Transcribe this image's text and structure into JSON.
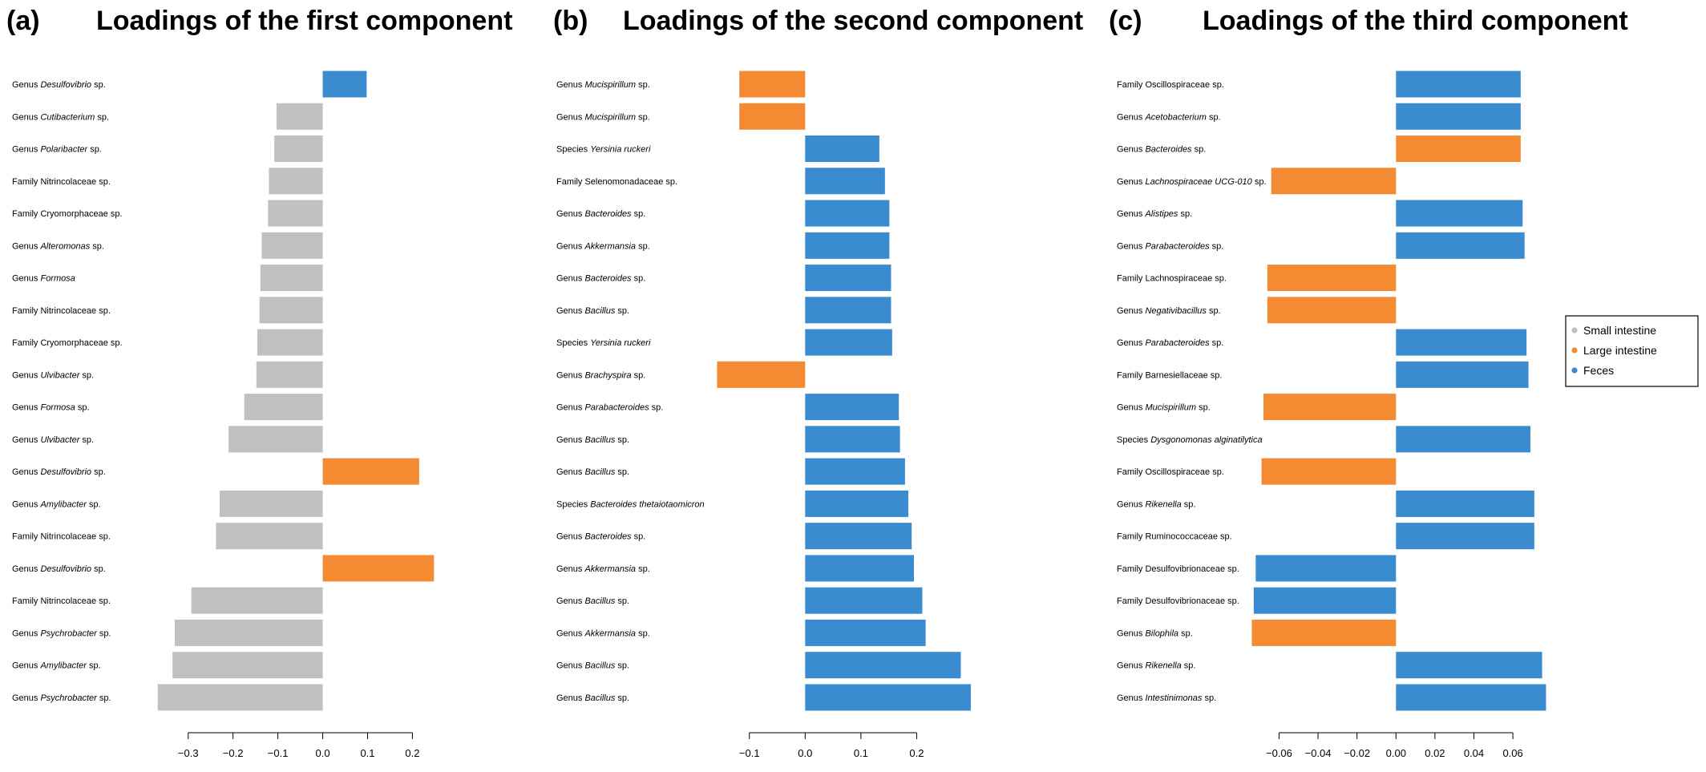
{
  "colors": {
    "small": "#c0c0c0",
    "large": "#f48b32",
    "feces": "#3a8bd0"
  },
  "legend": {
    "items": [
      {
        "key": "small",
        "label": "Small intestine"
      },
      {
        "key": "large",
        "label": "Large intestine"
      },
      {
        "key": "feces",
        "label": "Feces"
      }
    ]
  },
  "chart_data": [
    {
      "type": "bar",
      "orientation": "horizontal",
      "panel": "(a)",
      "title": "Loadings of the first component",
      "xlim": [
        -0.38,
        0.26
      ],
      "xticks": [
        -0.3,
        -0.2,
        -0.1,
        0.0,
        0.1,
        0.2
      ],
      "xtick_labels": [
        "−0.3",
        "−0.2",
        "−0.1",
        "0.0",
        "0.1",
        "0.2"
      ],
      "axis_range": [
        -0.3,
        0.2
      ],
      "bars": [
        {
          "rank": "Genus",
          "name": "Desulfovibrio",
          "italic": true,
          "suffix": " sp.",
          "value": 0.098,
          "group": "feces"
        },
        {
          "rank": "Genus",
          "name": "Cutibacterium",
          "italic": true,
          "suffix": " sp.",
          "value": -0.103,
          "group": "small"
        },
        {
          "rank": "Genus",
          "name": "Polaribacter",
          "italic": true,
          "suffix": " sp.",
          "value": -0.108,
          "group": "small"
        },
        {
          "rank": "Family",
          "name": "Nitrincolaceae",
          "italic": false,
          "suffix": " sp.",
          "value": -0.12,
          "group": "small"
        },
        {
          "rank": "Family",
          "name": "Cryomorphaceae",
          "italic": false,
          "suffix": " sp.",
          "value": -0.122,
          "group": "small"
        },
        {
          "rank": "Genus",
          "name": "Alteromonas",
          "italic": true,
          "suffix": " sp.",
          "value": -0.136,
          "group": "small"
        },
        {
          "rank": "Genus",
          "name": "Formosa",
          "italic": true,
          "suffix": "",
          "value": -0.139,
          "group": "small"
        },
        {
          "rank": "Family",
          "name": "Nitrincolaceae",
          "italic": false,
          "suffix": " sp.",
          "value": -0.141,
          "group": "small"
        },
        {
          "rank": "Family",
          "name": "Cryomorphaceae",
          "italic": false,
          "suffix": " sp.",
          "value": -0.146,
          "group": "small"
        },
        {
          "rank": "Genus",
          "name": "Ulvibacter",
          "italic": true,
          "suffix": " sp.",
          "value": -0.148,
          "group": "small"
        },
        {
          "rank": "Genus",
          "name": "Formosa",
          "italic": true,
          "suffix": " sp.",
          "value": -0.175,
          "group": "small"
        },
        {
          "rank": "Genus",
          "name": "Ulvibacter",
          "italic": true,
          "suffix": " sp.",
          "value": -0.21,
          "group": "small"
        },
        {
          "rank": "Genus",
          "name": "Desulfovibrio",
          "italic": true,
          "suffix": " sp.",
          "value": 0.215,
          "group": "large"
        },
        {
          "rank": "Genus",
          "name": "Amylibacter",
          "italic": true,
          "suffix": " sp.",
          "value": -0.23,
          "group": "small"
        },
        {
          "rank": "Family",
          "name": "Nitrincolaceae",
          "italic": false,
          "suffix": " sp.",
          "value": -0.238,
          "group": "small"
        },
        {
          "rank": "Genus",
          "name": "Desulfovibrio",
          "italic": true,
          "suffix": " sp.",
          "value": 0.248,
          "group": "large"
        },
        {
          "rank": "Family",
          "name": "Nitrincolaceae",
          "italic": false,
          "suffix": " sp.",
          "value": -0.293,
          "group": "small"
        },
        {
          "rank": "Genus",
          "name": "Psychrobacter",
          "italic": true,
          "suffix": " sp.",
          "value": -0.33,
          "group": "small"
        },
        {
          "rank": "Genus",
          "name": "Amylibacter",
          "italic": true,
          "suffix": " sp.",
          "value": -0.335,
          "group": "small"
        },
        {
          "rank": "Genus",
          "name": "Psychrobacter",
          "italic": true,
          "suffix": " sp.",
          "value": -0.368,
          "group": "small"
        }
      ]
    },
    {
      "type": "bar",
      "orientation": "horizontal",
      "panel": "(b)",
      "title": "Loadings of the second component",
      "xlim": [
        -0.16,
        0.31
      ],
      "xticks": [
        -0.1,
        0.0,
        0.1,
        0.2
      ],
      "xtick_labels": [
        "−0.1",
        "0.0",
        "0.1",
        "0.2"
      ],
      "axis_range": [
        -0.1,
        0.2
      ],
      "bars": [
        {
          "rank": "Genus",
          "name": "Mucispirillum",
          "italic": true,
          "suffix": " sp.",
          "value": -0.118,
          "group": "large"
        },
        {
          "rank": "Genus",
          "name": "Mucispirillum",
          "italic": true,
          "suffix": " sp.",
          "value": -0.118,
          "group": "large"
        },
        {
          "rank": "Species",
          "name": "Yersinia ruckeri",
          "italic": true,
          "suffix": "",
          "value": 0.133,
          "group": "feces"
        },
        {
          "rank": "Family",
          "name": "Selenomonadaceae",
          "italic": false,
          "suffix": " sp.",
          "value": 0.143,
          "group": "feces"
        },
        {
          "rank": "Genus",
          "name": "Bacteroides",
          "italic": true,
          "suffix": " sp.",
          "value": 0.151,
          "group": "feces"
        },
        {
          "rank": "Genus",
          "name": "Akkermansia",
          "italic": true,
          "suffix": " sp.",
          "value": 0.151,
          "group": "feces"
        },
        {
          "rank": "Genus",
          "name": "Bacteroides",
          "italic": true,
          "suffix": " sp.",
          "value": 0.154,
          "group": "feces"
        },
        {
          "rank": "Genus",
          "name": "Bacillus",
          "italic": true,
          "suffix": " sp.",
          "value": 0.154,
          "group": "feces"
        },
        {
          "rank": "Species",
          "name": "Yersinia ruckeri",
          "italic": true,
          "suffix": "",
          "value": 0.156,
          "group": "feces"
        },
        {
          "rank": "Genus",
          "name": "Brachyspira",
          "italic": true,
          "suffix": " sp.",
          "value": -0.158,
          "group": "large"
        },
        {
          "rank": "Genus",
          "name": "Parabacteroides",
          "italic": true,
          "suffix": " sp.",
          "value": 0.168,
          "group": "feces"
        },
        {
          "rank": "Genus",
          "name": "Bacillus",
          "italic": true,
          "suffix": " sp.",
          "value": 0.17,
          "group": "feces"
        },
        {
          "rank": "Genus",
          "name": "Bacillus",
          "italic": true,
          "suffix": " sp.",
          "value": 0.179,
          "group": "feces"
        },
        {
          "rank": "Species",
          "name": "Bacteroides thetaiotaomicron",
          "italic": true,
          "suffix": "",
          "value": 0.185,
          "group": "feces"
        },
        {
          "rank": "Genus",
          "name": "Bacteroides",
          "italic": true,
          "suffix": " sp.",
          "value": 0.191,
          "group": "feces"
        },
        {
          "rank": "Genus",
          "name": "Akkermansia",
          "italic": true,
          "suffix": " sp.",
          "value": 0.195,
          "group": "feces"
        },
        {
          "rank": "Genus",
          "name": "Bacillus",
          "italic": true,
          "suffix": " sp.",
          "value": 0.21,
          "group": "feces"
        },
        {
          "rank": "Genus",
          "name": "Akkermansia",
          "italic": true,
          "suffix": " sp.",
          "value": 0.216,
          "group": "feces"
        },
        {
          "rank": "Genus",
          "name": "Bacillus",
          "italic": true,
          "suffix": " sp.",
          "value": 0.279,
          "group": "feces"
        },
        {
          "rank": "Genus",
          "name": "Bacillus",
          "italic": true,
          "suffix": " sp.",
          "value": 0.297,
          "group": "feces"
        }
      ]
    },
    {
      "type": "bar",
      "orientation": "horizontal",
      "panel": "(c)",
      "title": "Loadings of the third component",
      "xlim": [
        -0.075,
        0.076
      ],
      "xticks": [
        -0.06,
        -0.04,
        -0.02,
        0.0,
        0.02,
        0.04,
        0.06
      ],
      "xtick_labels": [
        "−0.06",
        "−0.04",
        "−0.02",
        "0.00",
        "0.02",
        "0.04",
        "0.06"
      ],
      "axis_range": [
        -0.06,
        0.06
      ],
      "bars": [
        {
          "rank": "Family",
          "name": "Oscillospiraceae",
          "italic": false,
          "suffix": " sp.",
          "value": 0.064,
          "group": "feces"
        },
        {
          "rank": "Genus",
          "name": "Acetobacterium",
          "italic": true,
          "suffix": " sp.",
          "value": 0.064,
          "group": "feces"
        },
        {
          "rank": "Genus",
          "name": "Bacteroides",
          "italic": true,
          "suffix": " sp.",
          "value": 0.064,
          "group": "large"
        },
        {
          "rank": "Genus",
          "name": "Lachnospiraceae UCG-010",
          "italic": true,
          "suffix": " sp.",
          "value": -0.064,
          "group": "large"
        },
        {
          "rank": "Genus",
          "name": "Alistipes",
          "italic": true,
          "suffix": " sp.",
          "value": 0.065,
          "group": "feces"
        },
        {
          "rank": "Genus",
          "name": "Parabacteroides",
          "italic": true,
          "suffix": " sp.",
          "value": 0.066,
          "group": "feces"
        },
        {
          "rank": "Family",
          "name": "Lachnospiraceae",
          "italic": false,
          "suffix": " sp.",
          "value": -0.066,
          "group": "large"
        },
        {
          "rank": "Genus",
          "name": "Negativibacillus",
          "italic": true,
          "suffix": " sp.",
          "value": -0.066,
          "group": "large"
        },
        {
          "rank": "Genus",
          "name": "Parabacteroides",
          "italic": true,
          "suffix": " sp.",
          "value": 0.067,
          "group": "feces"
        },
        {
          "rank": "Family",
          "name": "Barnesiellaceae",
          "italic": false,
          "suffix": " sp.",
          "value": 0.068,
          "group": "feces"
        },
        {
          "rank": "Genus",
          "name": "Mucispirillum",
          "italic": true,
          "suffix": " sp.",
          "value": -0.068,
          "group": "large"
        },
        {
          "rank": "Species",
          "name": "Dysgonomonas alginatilytica",
          "italic": true,
          "suffix": "",
          "value": 0.069,
          "group": "feces"
        },
        {
          "rank": "Family",
          "name": "Oscillospiraceae",
          "italic": false,
          "suffix": " sp.",
          "value": -0.069,
          "group": "large"
        },
        {
          "rank": "Genus",
          "name": "Rikenella",
          "italic": true,
          "suffix": " sp.",
          "value": 0.071,
          "group": "feces"
        },
        {
          "rank": "Family",
          "name": "Ruminococcaceae",
          "italic": false,
          "suffix": " sp.",
          "value": 0.071,
          "group": "feces"
        },
        {
          "rank": "Family",
          "name": "Desulfovibrionaceae",
          "italic": false,
          "suffix": " sp.",
          "value": -0.072,
          "group": "feces"
        },
        {
          "rank": "Family",
          "name": "Desulfovibrionaceae",
          "italic": false,
          "suffix": " sp.",
          "value": -0.073,
          "group": "feces"
        },
        {
          "rank": "Genus",
          "name": "Bilophila",
          "italic": true,
          "suffix": " sp.",
          "value": -0.074,
          "group": "large"
        },
        {
          "rank": "Genus",
          "name": "Rikenella",
          "italic": true,
          "suffix": " sp.",
          "value": 0.075,
          "group": "feces"
        },
        {
          "rank": "Genus",
          "name": "Intestinimonas",
          "italic": true,
          "suffix": " sp.",
          "value": 0.077,
          "group": "feces"
        }
      ]
    }
  ]
}
